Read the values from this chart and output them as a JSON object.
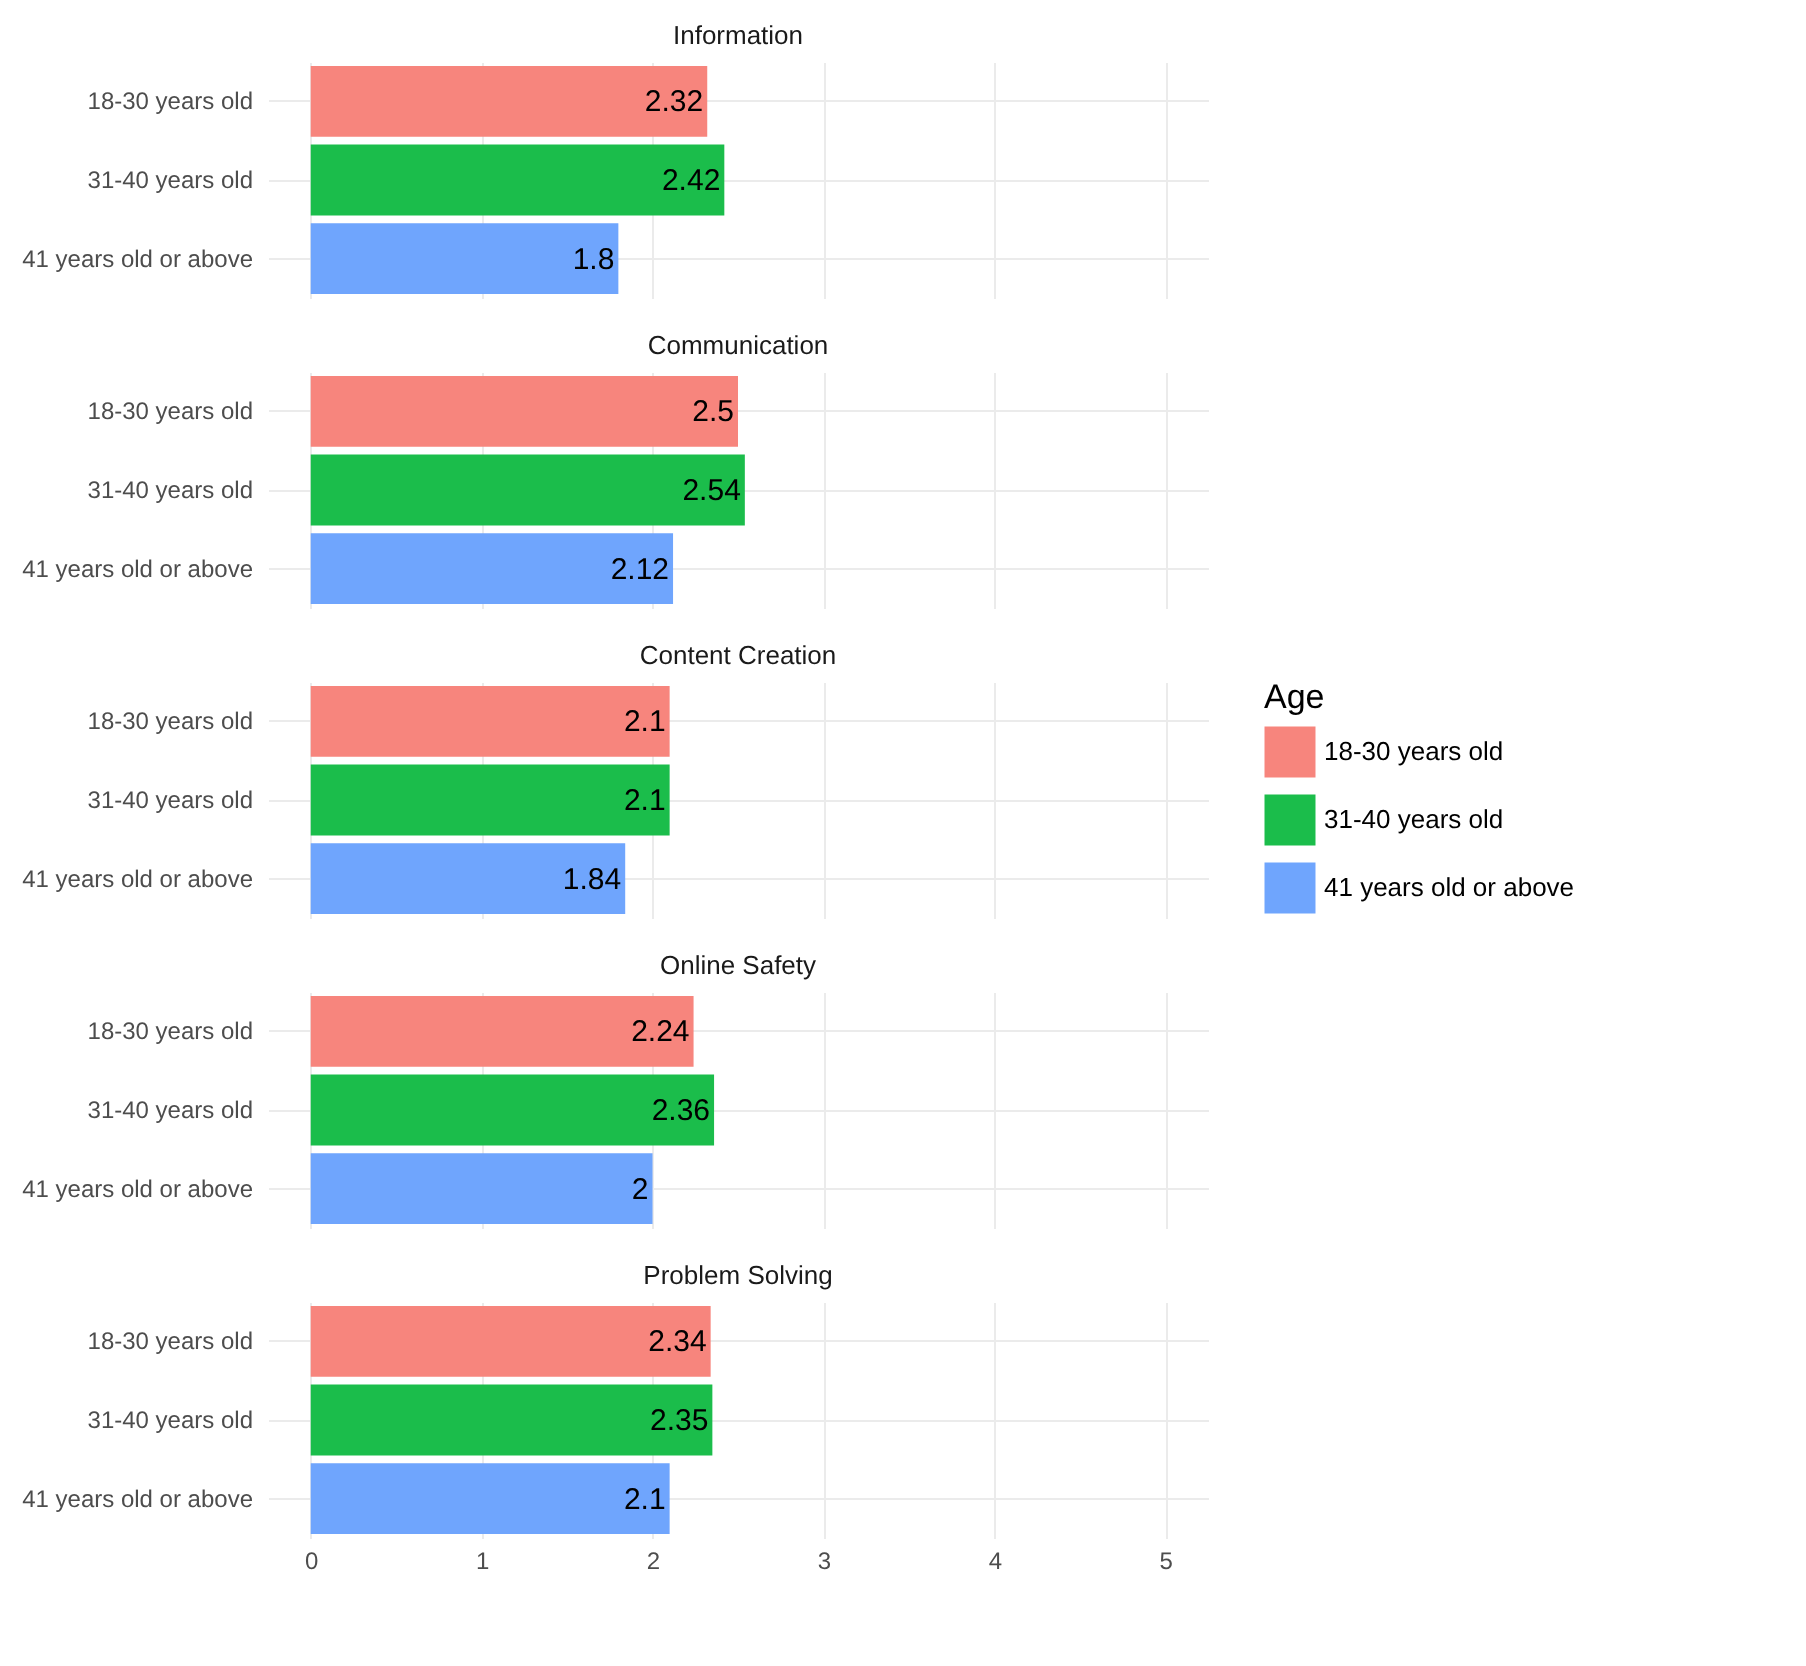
{
  "chart_data": [
    {
      "type": "bar",
      "orientation": "horizontal",
      "title": "Information",
      "categories": [
        "18-30 years old",
        "31-40 years old",
        "41 years old or above"
      ],
      "series": [
        {
          "color": "#f7857d",
          "values": [
            2.32,
            null,
            null
          ]
        },
        {
          "color": "#1bbd4b",
          "values": [
            null,
            2.42,
            null
          ]
        },
        {
          "color": "#6fa5fd",
          "values": [
            null,
            null,
            1.8
          ]
        }
      ],
      "xlim": [
        -0.25,
        5.25
      ],
      "xticks": [
        0,
        1,
        2,
        3,
        4,
        5
      ],
      "grid": true,
      "data_labels": true,
      "tick_labels": "y"
    },
    {
      "type": "bar",
      "orientation": "horizontal",
      "title": "Communication",
      "categories": [
        "18-30 years old",
        "31-40 years old",
        "41 years old or above"
      ],
      "series": [
        {
          "color": "#f7857d",
          "values": [
            2.5,
            null,
            null
          ]
        },
        {
          "color": "#1bbd4b",
          "values": [
            null,
            2.54,
            null
          ]
        },
        {
          "color": "#6fa5fd",
          "values": [
            null,
            null,
            2.12
          ]
        }
      ],
      "xlim": [
        -0.25,
        5.25
      ],
      "xticks": [
        0,
        1,
        2,
        3,
        4,
        5
      ],
      "grid": true,
      "data_labels": true,
      "tick_labels": "y"
    },
    {
      "type": "bar",
      "orientation": "horizontal",
      "title": "Content Creation",
      "categories": [
        "18-30 years old",
        "31-40 years old",
        "41 years old or above"
      ],
      "series": [
        {
          "name": "18-30 years old",
          "color": "#f7857d",
          "values": [
            2.1,
            null,
            null
          ]
        },
        {
          "name": "31-40 years old",
          "color": "#1bbd4b",
          "values": [
            null,
            2.1,
            null
          ]
        },
        {
          "name": "41 years old or above",
          "color": "#6fa5fd",
          "values": [
            null,
            null,
            1.84
          ]
        }
      ],
      "xlim": [
        -0.25,
        5.25
      ],
      "xticks": [
        0,
        1,
        2,
        3,
        4,
        5
      ],
      "grid": true,
      "data_labels": true,
      "tick_labels": "y",
      "legend": "right",
      "legend_title": "Age"
    },
    {
      "type": "bar",
      "orientation": "horizontal",
      "title": "Online Safety",
      "categories": [
        "18-30 years old",
        "31-40 years old",
        "41 years old or above"
      ],
      "series": [
        {
          "color": "#f7857d",
          "values": [
            2.24,
            null,
            null
          ]
        },
        {
          "color": "#1bbd4b",
          "values": [
            null,
            2.36,
            null
          ]
        },
        {
          "color": "#6fa5fd",
          "values": [
            null,
            null,
            2
          ]
        }
      ],
      "xlim": [
        -0.25,
        5.25
      ],
      "xticks": [
        0,
        1,
        2,
        3,
        4,
        5
      ],
      "grid": true,
      "data_labels": true,
      "tick_labels": "y"
    },
    {
      "type": "bar",
      "orientation": "horizontal",
      "title": "Problem Solving",
      "categories": [
        "18-30 years old",
        "31-40 years old",
        "41 years old or above"
      ],
      "series": [
        {
          "color": "#f7857d",
          "values": [
            2.34,
            null,
            null
          ]
        },
        {
          "color": "#1bbd4b",
          "values": [
            null,
            2.35,
            null
          ]
        },
        {
          "color": "#6fa5fd",
          "values": [
            null,
            null,
            2.1
          ]
        }
      ],
      "xlim": [
        -0.25,
        5.25
      ],
      "xticks": [
        0,
        1,
        2,
        3,
        4,
        5
      ],
      "grid": true,
      "data_labels": true
    }
  ]
}
